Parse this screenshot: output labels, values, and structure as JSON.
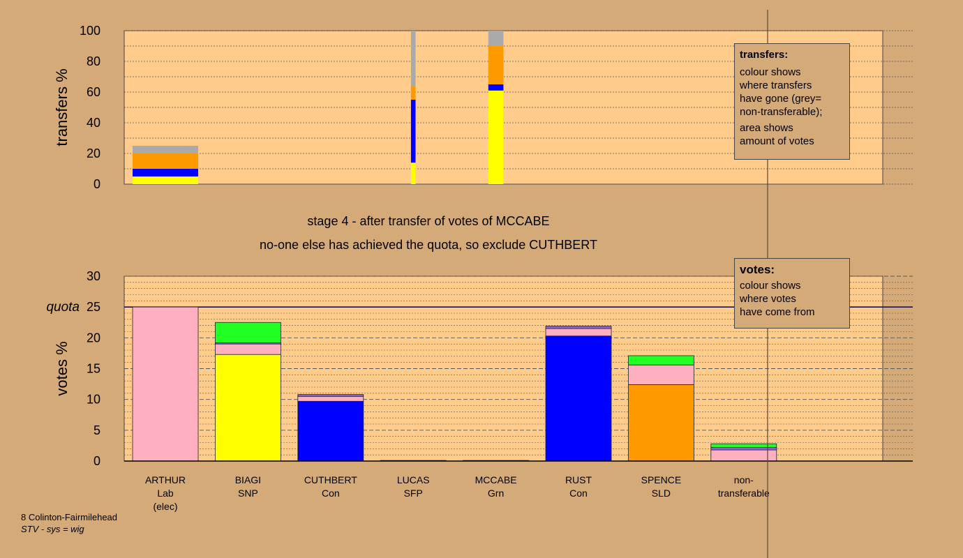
{
  "chart_data": [
    {
      "type": "bar",
      "stacked": true,
      "ylabel": "transfers %",
      "ylim": [
        0,
        100
      ],
      "yticks": [
        0,
        20,
        40,
        60,
        80,
        100
      ],
      "grid": true,
      "legend": {
        "title": "transfers:",
        "lines": [
          "colour shows\nwhere transfers\nhave gone (grey=\nnon-transferable);",
          "area shows\namount of votes"
        ],
        "placement": "top-right"
      },
      "bars": [
        {
          "index": 0,
          "width_fraction": 1.0,
          "segments": [
            {
              "color": "#ffff00",
              "value": 5
            },
            {
              "color": "#0000ff",
              "value": 5
            },
            {
              "color": "#ff9900",
              "value": 10
            },
            {
              "color": "#aaaaaa",
              "value": 5
            }
          ]
        },
        {
          "index": 3,
          "width_fraction": 0.07,
          "segments": [
            {
              "color": "#ffff00",
              "value": 14
            },
            {
              "color": "#0000ff",
              "value": 41
            },
            {
              "color": "#ff9900",
              "value": 9
            },
            {
              "color": "#aaaaaa",
              "value": 36
            }
          ]
        },
        {
          "index": 4,
          "width_fraction": 0.23,
          "segments": [
            {
              "color": "#ffff00",
              "value": 61
            },
            {
              "color": "#0000ff",
              "value": 4
            },
            {
              "color": "#ff9900",
              "value": 25
            },
            {
              "color": "#aaaaaa",
              "value": 10
            }
          ]
        }
      ]
    },
    {
      "type": "bar",
      "stacked": true,
      "ylabel": "votes %",
      "ylim": [
        0,
        30
      ],
      "yticks": [
        0,
        5,
        10,
        15,
        20,
        25,
        30
      ],
      "quota": {
        "label": "quota",
        "value": 25
      },
      "grid": true,
      "legend": {
        "title": "votes:",
        "lines": [
          "colour shows\nwhere votes\nhave come from"
        ],
        "placement": "top-right"
      },
      "categories": [
        {
          "name": "ARTHUR",
          "party": "Lab",
          "note": "(elec)"
        },
        {
          "name": "BIAGI",
          "party": "SNP",
          "note": ""
        },
        {
          "name": "CUTHBERT",
          "party": "Con",
          "note": ""
        },
        {
          "name": "LUCAS",
          "party": "SFP",
          "note": ""
        },
        {
          "name": "MCCABE",
          "party": "Grn",
          "note": ""
        },
        {
          "name": "RUST",
          "party": "Con",
          "note": ""
        },
        {
          "name": "SPENCE",
          "party": "SLD",
          "note": ""
        },
        {
          "name": "non-",
          "party": "transferable",
          "note": ""
        }
      ],
      "bars": [
        {
          "index": 0,
          "segments": [
            {
              "color": "#ffb0c0",
              "value": 25
            }
          ]
        },
        {
          "index": 1,
          "segments": [
            {
              "color": "#ffff00",
              "value": 17.3
            },
            {
              "color": "#ffb0c0",
              "value": 1.7
            },
            {
              "color": "#8866cc",
              "value": 0.2
            },
            {
              "color": "#22ff22",
              "value": 3.3
            }
          ]
        },
        {
          "index": 2,
          "segments": [
            {
              "color": "#0000ff",
              "value": 9.7
            },
            {
              "color": "#ffb0c0",
              "value": 0.8
            },
            {
              "color": "#8866cc",
              "value": 0.3
            }
          ]
        },
        {
          "index": 3,
          "segments": [
            {
              "color": "#000000",
              "value": 0.1
            }
          ]
        },
        {
          "index": 4,
          "segments": [
            {
              "color": "#000000",
              "value": 0.1
            }
          ]
        },
        {
          "index": 5,
          "segments": [
            {
              "color": "#0000ff",
              "value": 20.3
            },
            {
              "color": "#ffb0c0",
              "value": 1.2
            },
            {
              "color": "#8866cc",
              "value": 0.4
            }
          ]
        },
        {
          "index": 6,
          "segments": [
            {
              "color": "#ff9900",
              "value": 12.4
            },
            {
              "color": "#ffb0c0",
              "value": 3.2
            },
            {
              "color": "#22ff22",
              "value": 1.5
            }
          ]
        },
        {
          "index": 7,
          "segments": [
            {
              "color": "#ffb0c0",
              "value": 1.8
            },
            {
              "color": "#8866cc",
              "value": 0.4
            },
            {
              "color": "#22ff22",
              "value": 0.6
            }
          ]
        }
      ]
    }
  ],
  "stage": {
    "line1": "stage 4 - after transfer of votes of MCCABE",
    "line2": "no-one else has achieved the quota, so exclude CUTHBERT"
  },
  "footer": {
    "ward": "8 Colinton-Fairmilehead",
    "system": "STV - sys = wig"
  }
}
